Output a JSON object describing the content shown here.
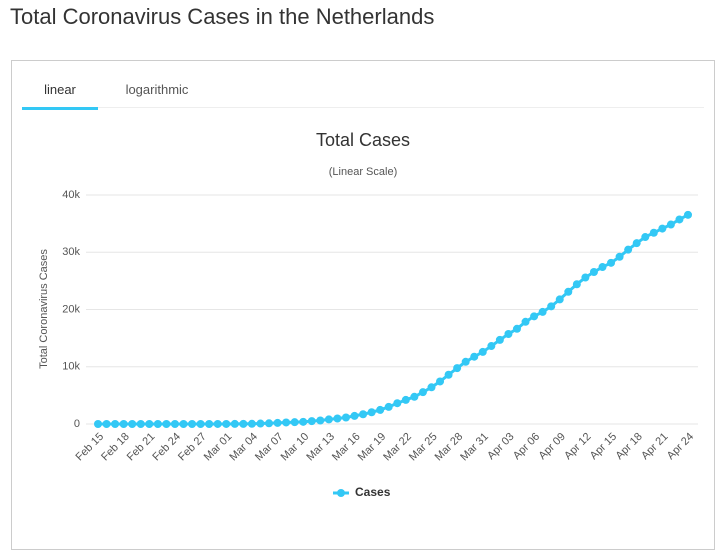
{
  "page_title": "Total Coronavirus Cases in the Netherlands",
  "tabs": [
    "linear",
    "logarithmic"
  ],
  "chart_data": {
    "type": "line",
    "title": "Total Cases",
    "subtitle": "(Linear Scale)",
    "y_axis_label": "Total Coronavirus Cases",
    "categories": [
      "Feb 15",
      null,
      null,
      "Feb 18",
      null,
      null,
      "Feb 21",
      null,
      null,
      "Feb 24",
      null,
      null,
      "Feb 27",
      null,
      null,
      "Mar 01",
      null,
      null,
      "Mar 04",
      null,
      null,
      "Mar 07",
      null,
      null,
      "Mar 10",
      null,
      null,
      "Mar 13",
      null,
      null,
      "Mar 16",
      null,
      null,
      "Mar 19",
      null,
      null,
      "Mar 22",
      null,
      null,
      "Mar 25",
      null,
      null,
      "Mar 28",
      null,
      null,
      "Mar 31",
      null,
      null,
      "Apr 03",
      null,
      null,
      "Apr 06",
      null,
      null,
      "Apr 09",
      null,
      null,
      "Apr 12",
      null,
      null,
      "Apr 15",
      null,
      null,
      "Apr 18",
      null,
      null,
      "Apr 21",
      null,
      null,
      "Apr 24"
    ],
    "series": [
      {
        "name": "Cases",
        "color": "#33c8f5",
        "values": [
          0,
          0,
          0,
          0,
          0,
          0,
          0,
          0,
          0,
          0,
          0,
          0,
          1,
          1,
          6,
          10,
          18,
          24,
          38,
          82,
          128,
          188,
          265,
          321,
          382,
          503,
          614,
          804,
          959,
          1135,
          1413,
          1705,
          2051,
          2460,
          2994,
          3631,
          4204,
          4749,
          5560,
          6412,
          7431,
          8603,
          9762,
          10866,
          11750,
          12595,
          13614,
          14697,
          15723,
          16627,
          17851,
          18803,
          19580,
          20549,
          21762,
          23097,
          24413,
          25587,
          26551,
          27419,
          28153,
          29214,
          30449,
          31589,
          32655,
          33405,
          34134,
          34842,
          35729,
          36535
        ]
      }
    ],
    "ylim": [
      0,
      40000
    ],
    "yticks": [
      0,
      {
        "value": 10000,
        "label": "10k"
      },
      {
        "value": 20000,
        "label": "20k"
      },
      {
        "value": 30000,
        "label": "30k"
      },
      {
        "value": 40000,
        "label": "40k"
      }
    ],
    "grid": true,
    "legend": "bottom"
  }
}
